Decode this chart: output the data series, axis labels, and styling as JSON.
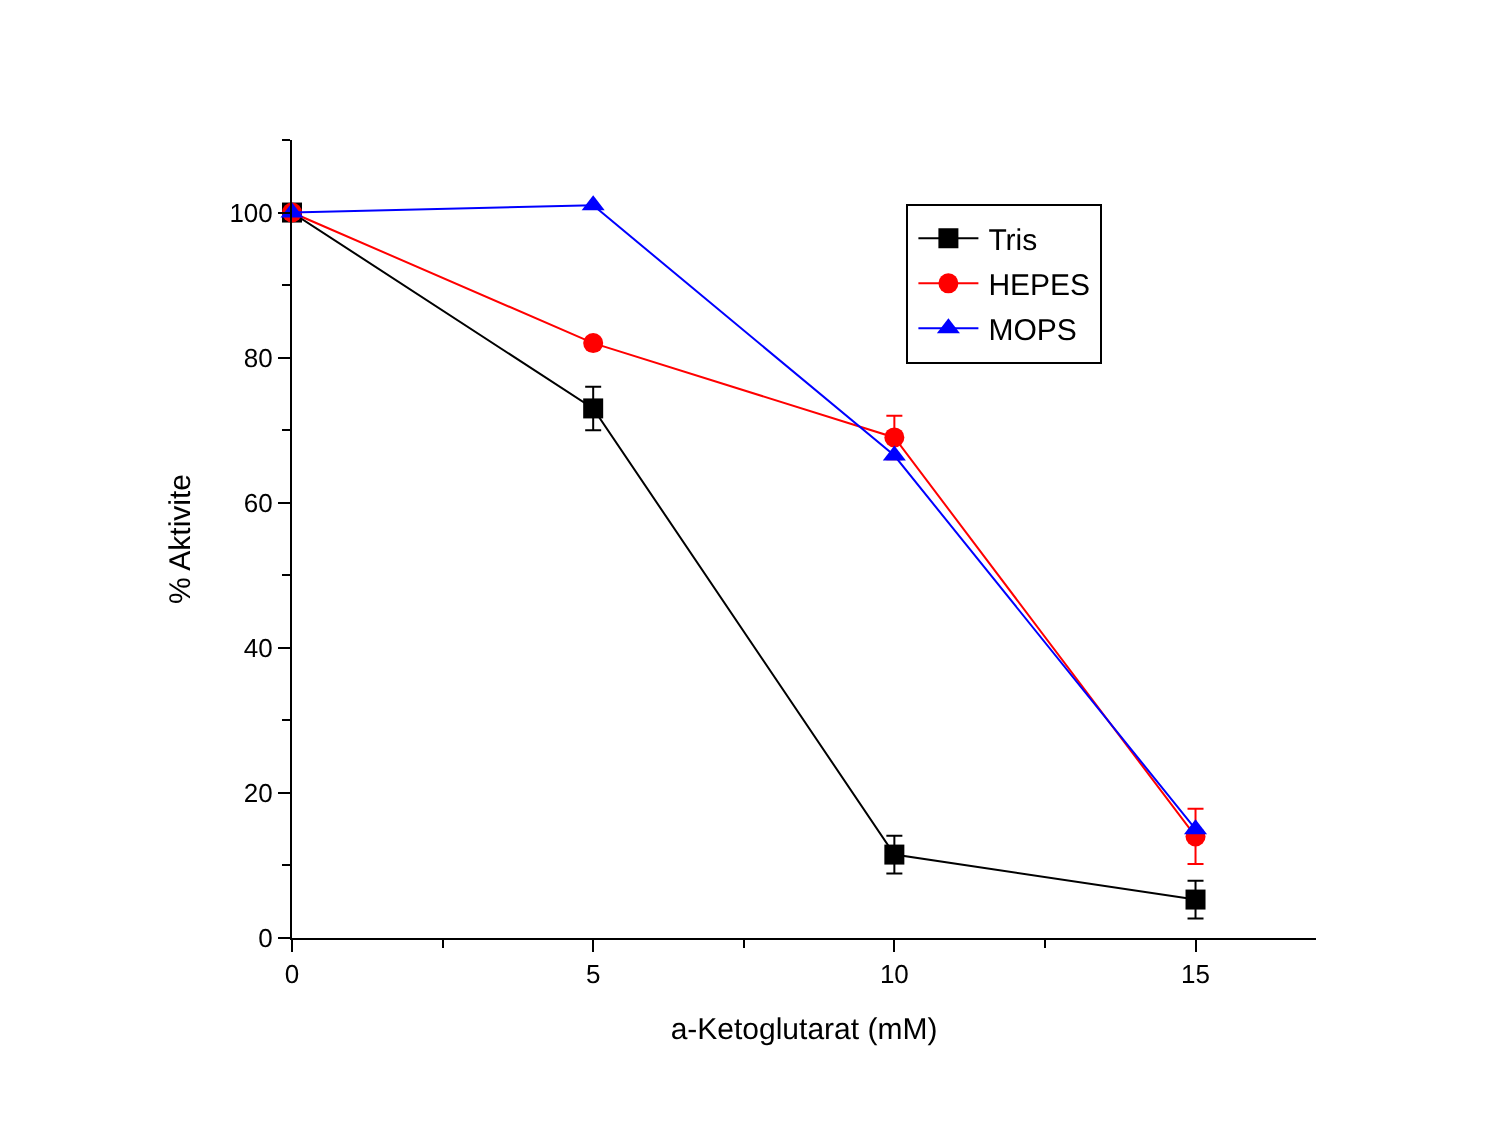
{
  "chart_data": {
    "type": "line",
    "xlabel": "a-Ketoglutarat (mM)",
    "ylabel": "% Aktivite",
    "x": [
      0,
      5,
      10,
      15
    ],
    "series": [
      {
        "name": "Tris",
        "color": "#000000",
        "marker": "square",
        "values": [
          100,
          73,
          11.5,
          5.3
        ],
        "errors": [
          null,
          3,
          2.6,
          2.6
        ]
      },
      {
        "name": "HEPES",
        "color": "#ff0000",
        "marker": "circle",
        "values": [
          100,
          82,
          69,
          14
        ],
        "errors": [
          null,
          null,
          3,
          3.8
        ]
      },
      {
        "name": "MOPS",
        "color": "#0000ff",
        "marker": "triangle",
        "values": [
          100,
          101,
          66.5,
          15
        ],
        "errors": [
          null,
          null,
          null,
          null
        ]
      }
    ],
    "xlim": [
      0,
      17
    ],
    "xticks": [
      0,
      5,
      10,
      15
    ],
    "ylim": [
      0,
      110
    ],
    "yticks": [
      0,
      20,
      40,
      60,
      80,
      100
    ],
    "legend": "top right",
    "line_style": "solid"
  }
}
